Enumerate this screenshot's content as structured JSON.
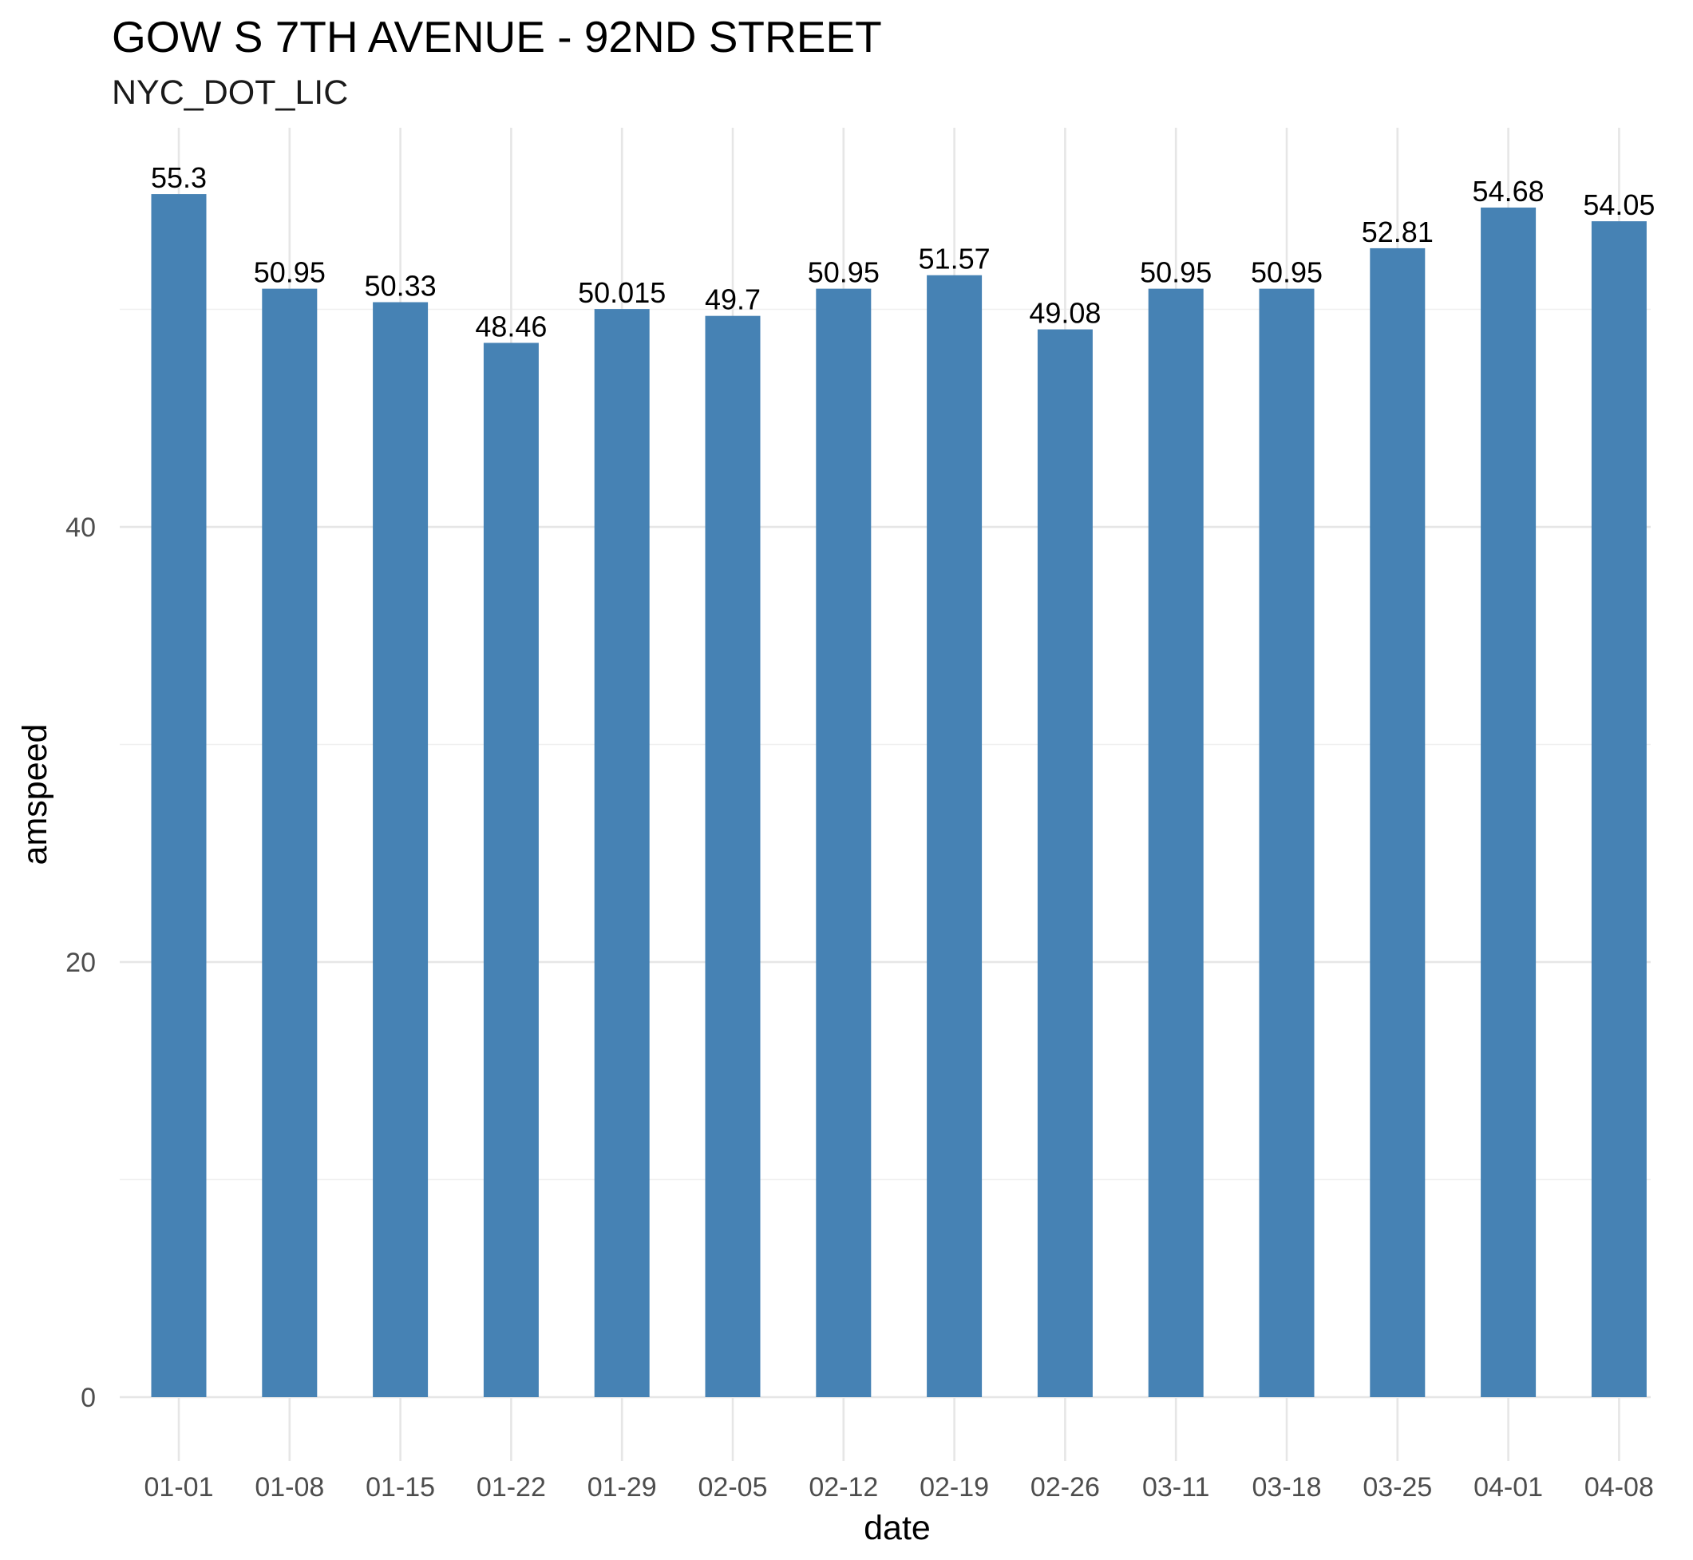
{
  "chart_data": {
    "type": "bar",
    "title": "GOW S 7TH AVENUE - 92ND STREET",
    "subtitle": "NYC_DOT_LIC",
    "xlabel": "date",
    "ylabel": "amspeed",
    "categories": [
      "01-01",
      "01-08",
      "01-15",
      "01-22",
      "01-29",
      "02-05",
      "02-12",
      "02-19",
      "02-26",
      "03-11",
      "03-18",
      "03-25",
      "04-01",
      "04-08"
    ],
    "values": [
      55.3,
      50.95,
      50.33,
      48.46,
      50.015,
      49.7,
      50.95,
      51.57,
      49.08,
      50.95,
      50.95,
      52.81,
      54.68,
      54.05
    ],
    "value_labels": [
      "55.3",
      "50.95",
      "50.33",
      "48.46",
      "50.015",
      "49.7",
      "50.95",
      "51.57",
      "49.08",
      "50.95",
      "50.95",
      "52.81",
      "54.68",
      "54.05"
    ],
    "yticks": [
      0,
      20,
      40
    ],
    "ylim": [
      0,
      58
    ],
    "grid": true,
    "bar_color": "#4682B4"
  }
}
